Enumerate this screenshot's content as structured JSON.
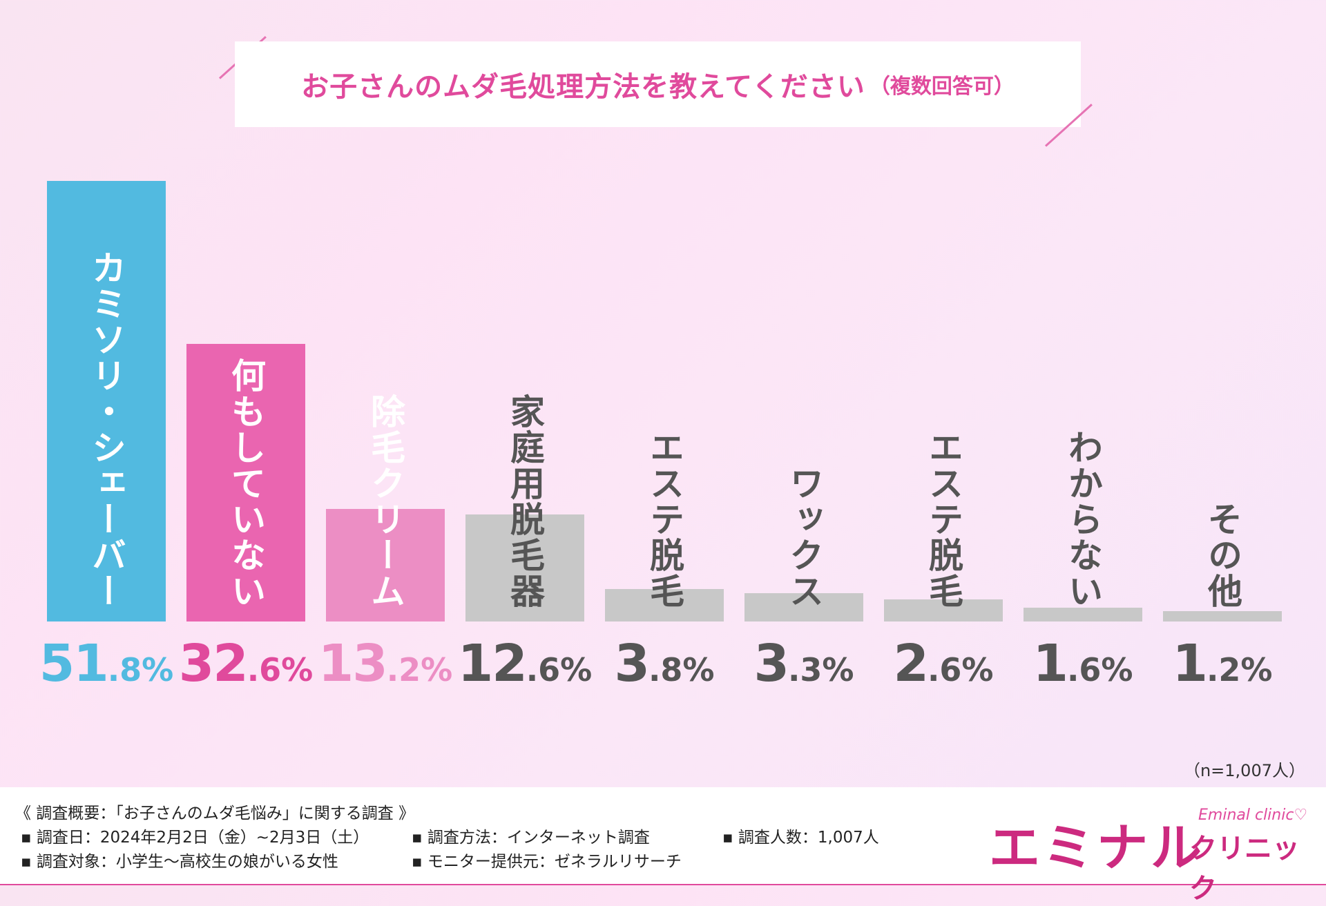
{
  "chart_data": {
    "type": "bar",
    "title": "お子さんのムダ毛処理方法を教えてください",
    "subtitle": "（複数回答可）",
    "categories": [
      "カミソリ・シェーバー",
      "何もしていない",
      "除毛クリーム",
      "家庭用脱毛器",
      "エステ脱毛",
      "ワックス",
      "エステ脱毛",
      "わからない",
      "その他"
    ],
    "values": [
      51.8,
      32.6,
      13.2,
      12.6,
      3.8,
      3.3,
      2.6,
      1.6,
      1.2
    ],
    "ylim": [
      0,
      51.8
    ],
    "colors": [
      "#52bae0",
      "#ea65b0",
      "#ec8ec4",
      "#c8c8c8",
      "#c8c8c8",
      "#c8c8c8",
      "#c8c8c8",
      "#c8c8c8",
      "#c8c8c8"
    ],
    "label_colors": [
      "#ffffff",
      "#ffffff",
      "#ffffff",
      "#555555",
      "#555555",
      "#555555",
      "#555555",
      "#555555",
      "#555555"
    ],
    "value_colors": [
      "#52bae0",
      "#e04a9c",
      "#ec8ec4",
      "#555555",
      "#555555",
      "#555555",
      "#555555",
      "#555555",
      "#555555"
    ],
    "value_labels": [
      {
        "int": "51",
        "dec": ".8%"
      },
      {
        "int": "32",
        "dec": ".6%"
      },
      {
        "int": "13",
        "dec": ".2%"
      },
      {
        "int": "12",
        "dec": ".6%"
      },
      {
        "int": "3",
        "dec": ".8%"
      },
      {
        "int": "3",
        "dec": ".3%"
      },
      {
        "int": "2",
        "dec": ".6%"
      },
      {
        "int": "1",
        "dec": ".6%"
      },
      {
        "int": "1",
        "dec": ".2%"
      }
    ],
    "grid": false,
    "legend": "none"
  },
  "sample_size": "（n=1,007人）",
  "survey": {
    "heading": "《 調査概要：「お子さんのムダ毛悩み」に関する調査 》",
    "date": "▪ 調査日：2024年2月2日（金）~2月3日（土）",
    "method": "▪ 調査方法：インターネット調査",
    "count": "▪ 調査人数：1,007人",
    "target": "▪ 調査対象：小学生～高校生の娘がいる女性",
    "provider": "▪ モニター提供元：ゼネラルリサーチ"
  },
  "logo": {
    "main": "エミナル",
    "sub": "クリニック",
    "en": "Eminal clinic♡"
  }
}
